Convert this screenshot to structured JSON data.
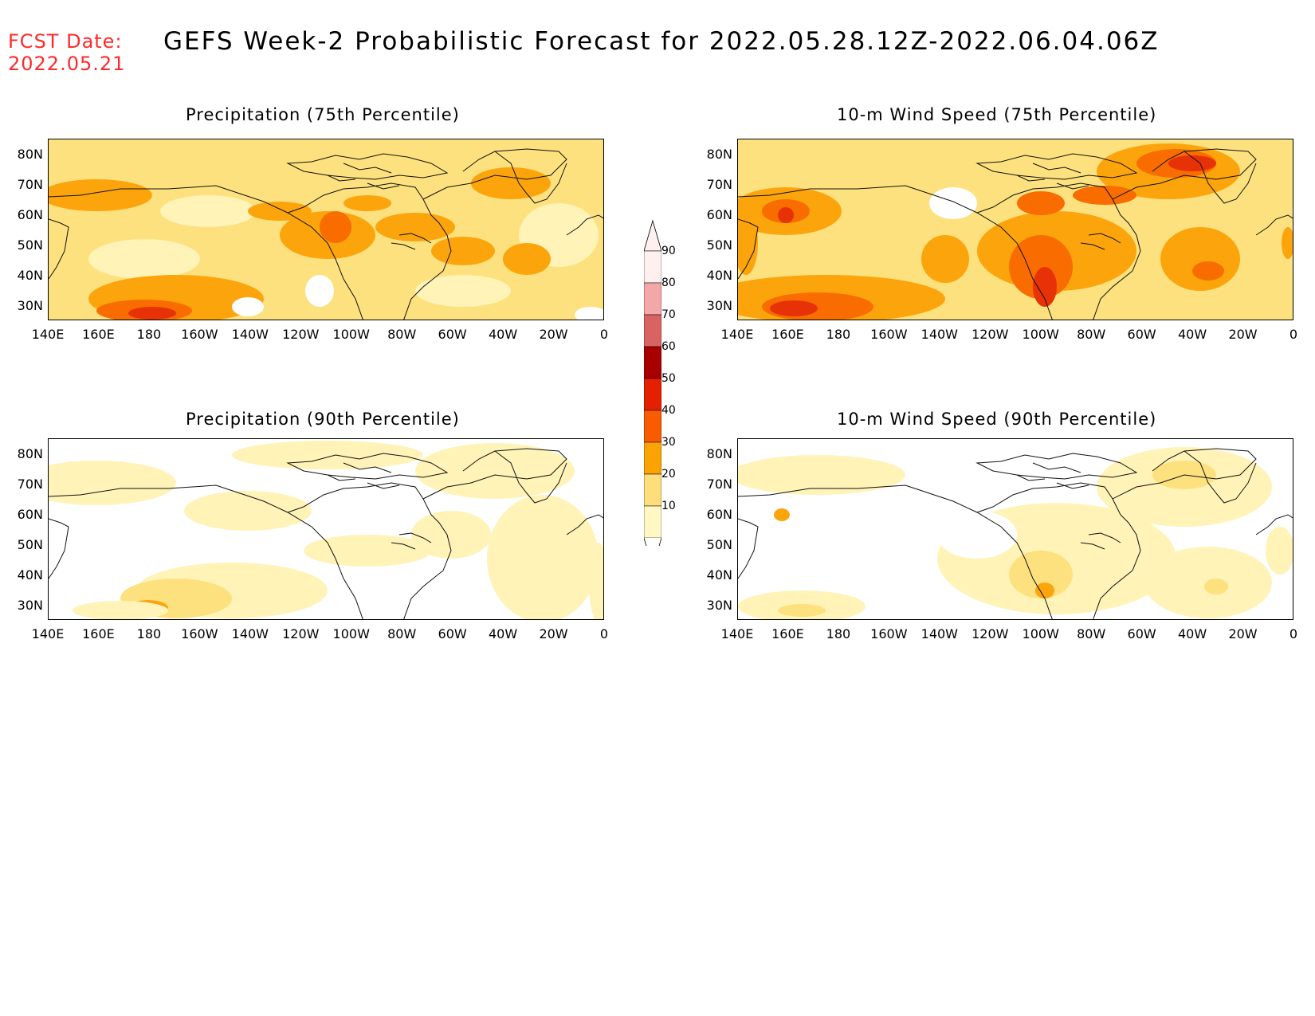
{
  "header": {
    "fcst_label": "FCST Date:",
    "fcst_date": "2022.05.21",
    "title": "GEFS Week-2 Probabilistic Forecast for 2022.05.28.12Z-2022.06.04.06Z"
  },
  "panels": [
    {
      "title": "Precipitation (75th Percentile)"
    },
    {
      "title": "10-m Wind Speed (75th Percentile)"
    },
    {
      "title": "Precipitation (90th Percentile)"
    },
    {
      "title": "10-m Wind Speed (90th Percentile)"
    }
  ],
  "axes": {
    "lon_ticks": [
      "140E",
      "160E",
      "180",
      "160W",
      "140W",
      "120W",
      "100W",
      "80W",
      "60W",
      "40W",
      "20W",
      "0"
    ],
    "lat_ticks": [
      "80N",
      "70N",
      "60N",
      "50N",
      "40N",
      "30N"
    ]
  },
  "colorbar": {
    "labels": [
      "90",
      "80",
      "70",
      "60",
      "50",
      "40",
      "30",
      "20",
      "10"
    ],
    "colors": [
      "#fff0f0",
      "#f4a7a8",
      "#d96262",
      "#a80000",
      "#e52000",
      "#f85b00",
      "#fba304",
      "#fdde7a",
      "#fff8c4"
    ]
  },
  "palette": {
    "white": "#ffffff",
    "c10": "#fff3b8",
    "c20": "#fde17e",
    "c30": "#fca40c",
    "c40": "#f86c00",
    "c50": "#e63206",
    "c60": "#b10a00",
    "land": "#111111",
    "header_red": "#ff2a2a"
  }
}
